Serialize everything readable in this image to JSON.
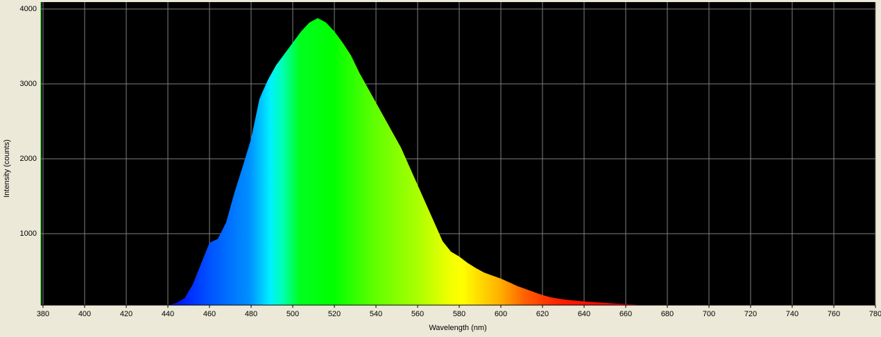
{
  "chart_data": {
    "type": "area",
    "xlabel": "Wavelength (nm)",
    "ylabel": "Intensity (counts)",
    "x": [
      440,
      444,
      448,
      452,
      456,
      460,
      464,
      468,
      472,
      476,
      480,
      484,
      488,
      492,
      496,
      500,
      504,
      508,
      512,
      516,
      520,
      524,
      528,
      532,
      536,
      540,
      544,
      548,
      552,
      556,
      560,
      564,
      568,
      572,
      576,
      580,
      584,
      588,
      592,
      596,
      600,
      604,
      608,
      612,
      616,
      620,
      624,
      628,
      632,
      636,
      640,
      648,
      656,
      664,
      668
    ],
    "values": [
      46,
      74,
      138,
      324,
      602,
      879,
      930,
      1150,
      1550,
      1900,
      2268,
      2800,
      3050,
      3250,
      3400,
      3550,
      3700,
      3820,
      3879,
      3820,
      3700,
      3550,
      3380,
      3150,
      2950,
      2750,
      2550,
      2350,
      2150,
      1900,
      1650,
      1400,
      1150,
      900,
      760,
      694,
      610,
      540,
      480,
      440,
      400,
      350,
      300,
      260,
      220,
      180,
      150,
      130,
      115,
      105,
      95,
      80,
      65,
      55,
      46
    ],
    "xlim": [
      379,
      780
    ],
    "ylim": [
      46,
      4093
    ],
    "xticks": [
      380,
      400,
      420,
      440,
      460,
      480,
      500,
      520,
      540,
      560,
      580,
      600,
      620,
      640,
      660,
      680,
      700,
      720,
      740,
      760,
      780
    ],
    "yticks": [
      1000,
      2000,
      3000,
      4000
    ],
    "grid": true
  }
}
